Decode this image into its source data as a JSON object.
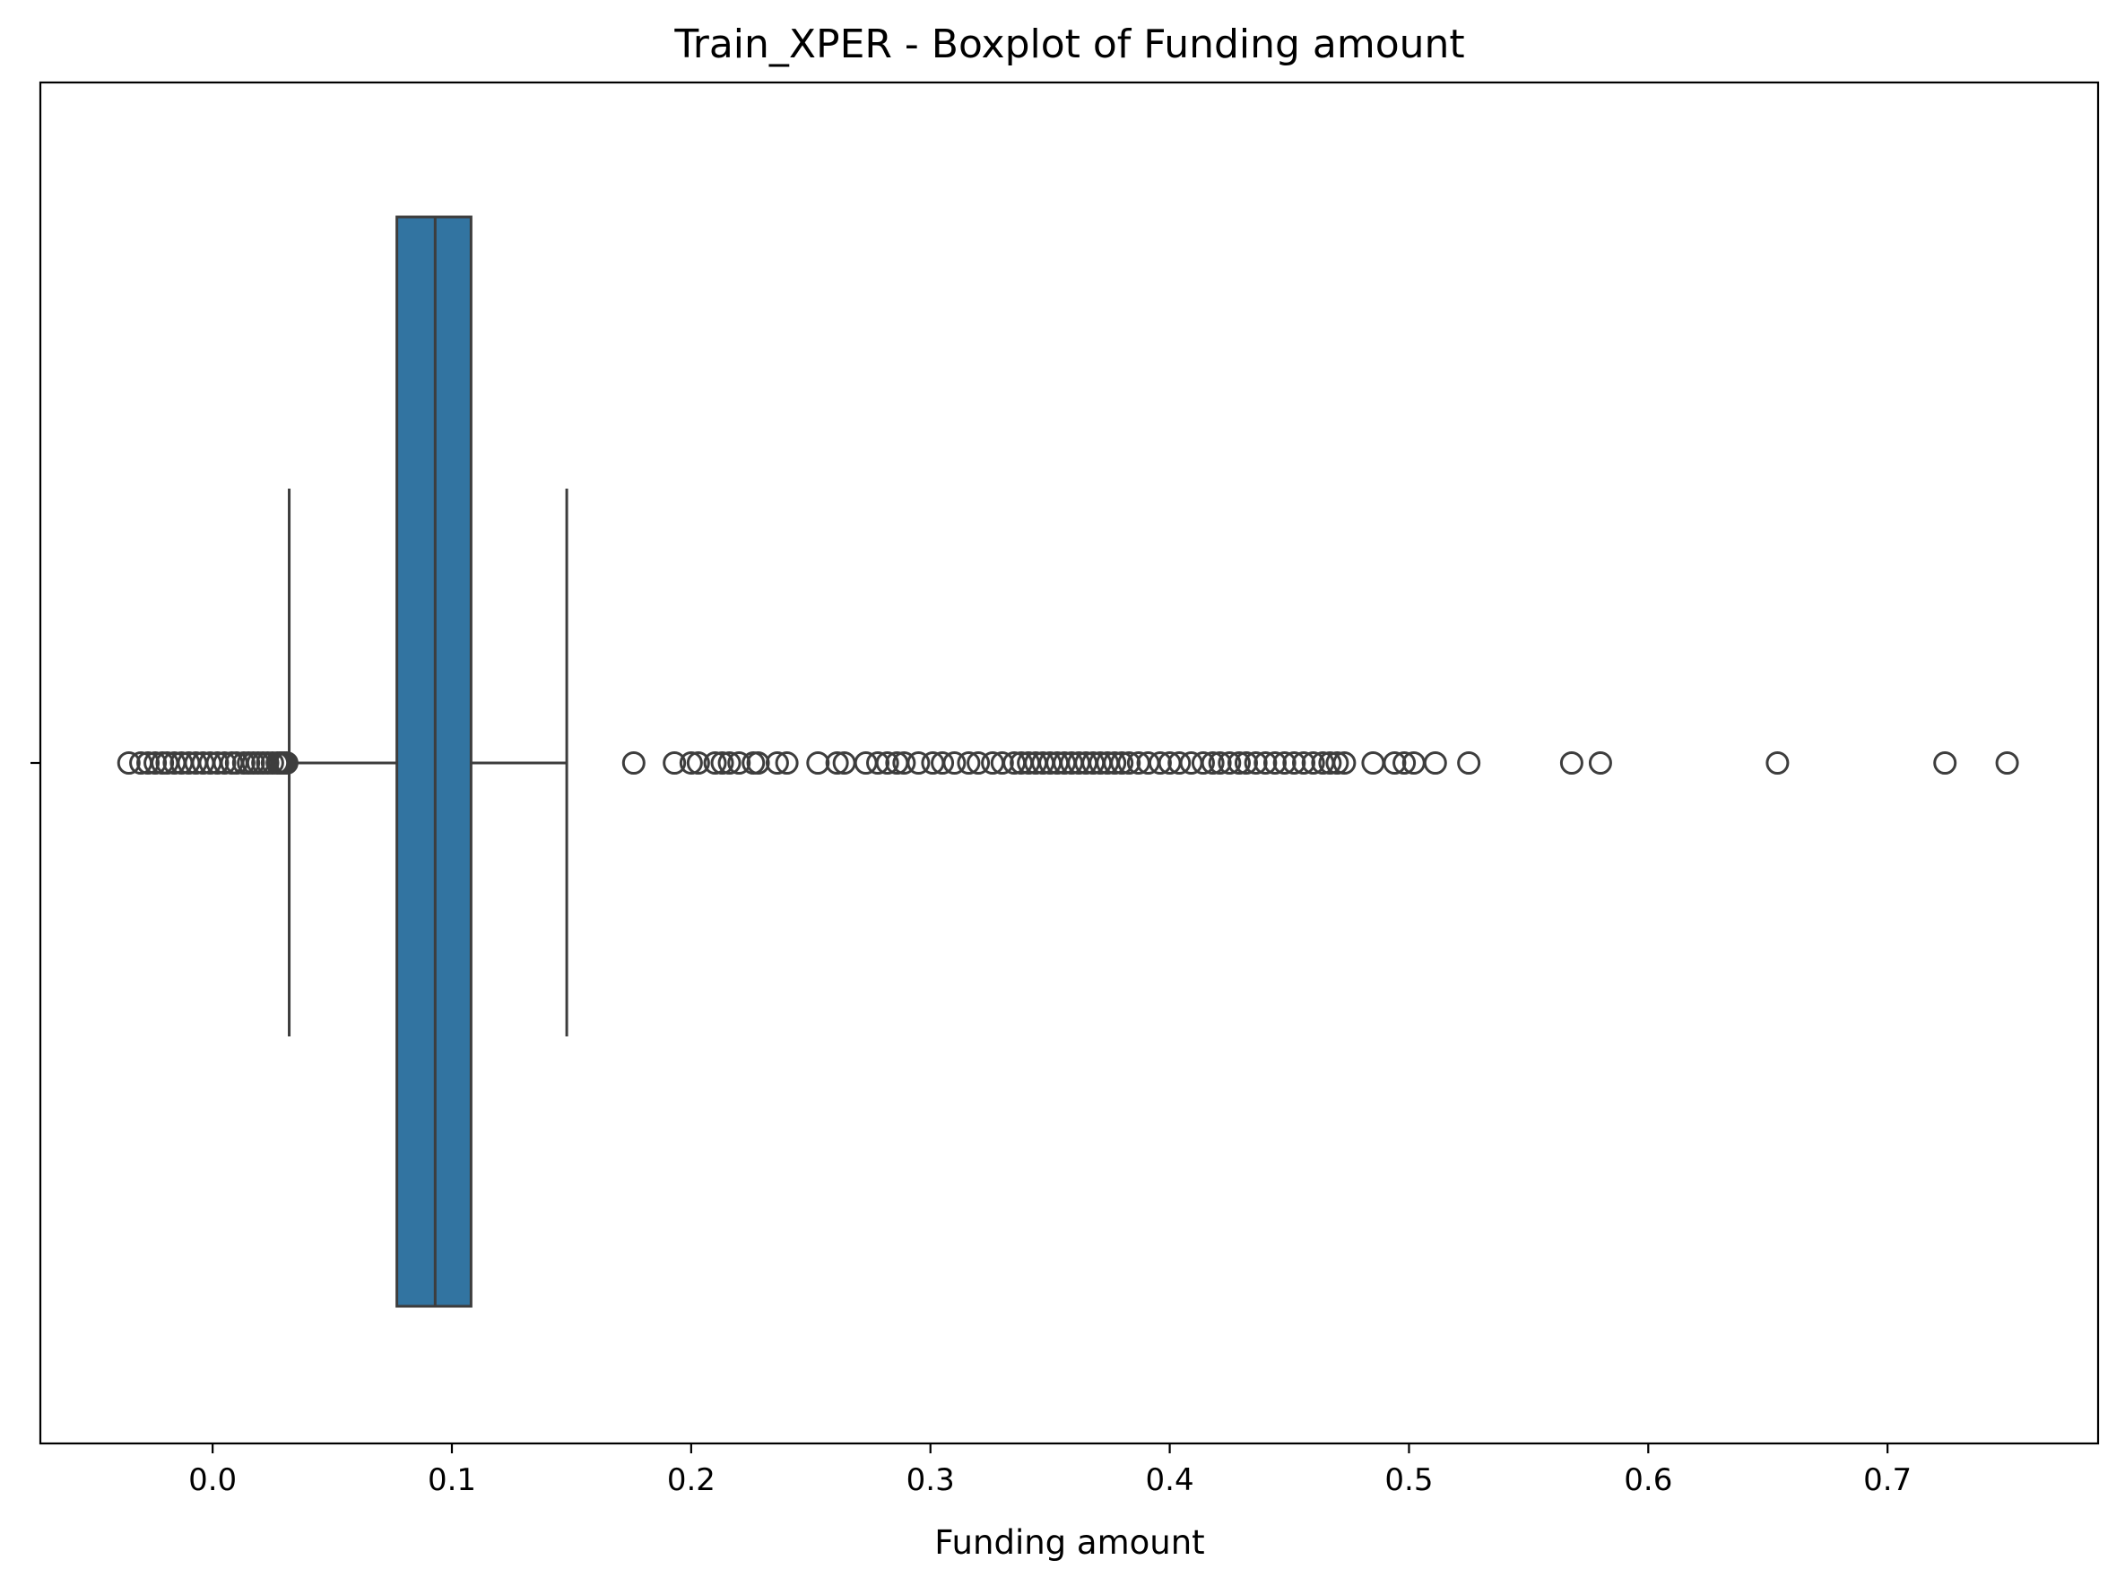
{
  "chart_data": {
    "type": "boxplot",
    "title": "Train_XPER - Boxplot of Funding amount",
    "xlabel": "Funding amount",
    "ylabel": "",
    "orientation": "horizontal",
    "xlim": [
      -0.072,
      0.788
    ],
    "xticks": [
      0.0,
      0.1,
      0.2,
      0.3,
      0.4,
      0.5,
      0.6,
      0.7
    ],
    "xtick_labels": [
      "0.0",
      "0.1",
      "0.2",
      "0.3",
      "0.4",
      "0.5",
      "0.6",
      "0.7"
    ],
    "grid": false,
    "legend": "none",
    "colors": {
      "box_fill": "#3274a1",
      "edge": "#3d3d3d"
    },
    "box": {
      "whisker_low": 0.032,
      "q1": 0.077,
      "median": 0.093,
      "q3": 0.108,
      "whisker_high": 0.148
    },
    "outliers": [
      -0.035,
      -0.03,
      -0.027,
      -0.024,
      -0.021,
      -0.019,
      -0.016,
      -0.013,
      -0.01,
      -0.007,
      -0.004,
      -0.001,
      0.002,
      0.005,
      0.008,
      0.01,
      0.013,
      0.015,
      0.017,
      0.019,
      0.021,
      0.023,
      0.025,
      0.027,
      0.028,
      0.029,
      0.03,
      0.031,
      0.176,
      0.193,
      0.2,
      0.203,
      0.21,
      0.213,
      0.216,
      0.22,
      0.226,
      0.228,
      0.236,
      0.24,
      0.253,
      0.261,
      0.264,
      0.273,
      0.278,
      0.282,
      0.286,
      0.289,
      0.295,
      0.301,
      0.305,
      0.31,
      0.316,
      0.32,
      0.326,
      0.33,
      0.335,
      0.338,
      0.341,
      0.344,
      0.347,
      0.35,
      0.353,
      0.356,
      0.359,
      0.362,
      0.365,
      0.368,
      0.371,
      0.374,
      0.377,
      0.38,
      0.383,
      0.387,
      0.391,
      0.396,
      0.4,
      0.404,
      0.409,
      0.414,
      0.418,
      0.421,
      0.425,
      0.429,
      0.432,
      0.436,
      0.44,
      0.444,
      0.448,
      0.452,
      0.456,
      0.46,
      0.464,
      0.467,
      0.47,
      0.473,
      0.485,
      0.494,
      0.498,
      0.502,
      0.511,
      0.525,
      0.568,
      0.58,
      0.654,
      0.724,
      0.75
    ]
  }
}
